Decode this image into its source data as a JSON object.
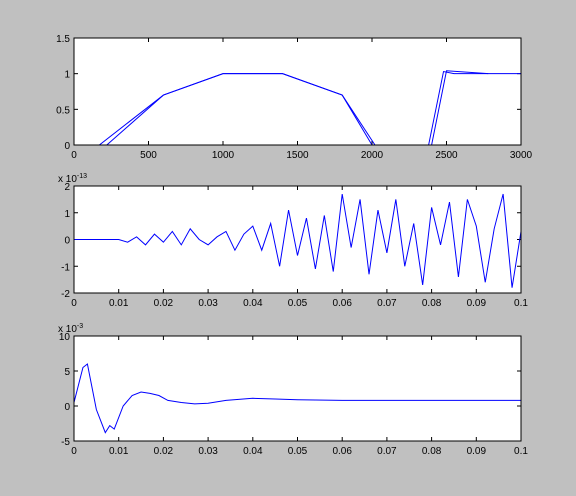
{
  "chart_data": [
    {
      "type": "line",
      "series": [
        {
          "color": "#0000ff",
          "x": [
            0,
            170,
            600,
            1000,
            1400,
            1800,
            2000,
            2380,
            2480,
            2550,
            3000
          ],
          "values": [
            0,
            0,
            0.7,
            1,
            1,
            0.7,
            0,
            0,
            1.03,
            1,
            1
          ]
        },
        {
          "color": "#0000ff",
          "x": [
            0,
            220,
            600,
            1000,
            1400,
            1800,
            2020,
            2400,
            2500,
            2780
          ],
          "values": [
            0,
            0,
            0.7,
            1,
            1,
            0.7,
            0,
            0,
            1.04,
            1
          ]
        }
      ],
      "xlim": [
        0,
        3000
      ],
      "xticks": [
        0,
        500,
        1000,
        1500,
        2000,
        2500,
        3000
      ],
      "ylim": [
        0,
        1.5
      ],
      "yticks": [
        0,
        0.5,
        1,
        1.5
      ]
    },
    {
      "type": "line",
      "y_exponent": {
        "base": "x 10",
        "power": "-13"
      },
      "x": [
        0,
        0.002,
        0.004,
        0.006,
        0.008,
        0.01,
        0.012,
        0.014,
        0.016,
        0.018,
        0.02,
        0.022,
        0.024,
        0.026,
        0.028,
        0.03,
        0.032,
        0.034,
        0.036,
        0.038,
        0.04,
        0.042,
        0.044,
        0.046,
        0.048,
        0.05,
        0.052,
        0.054,
        0.056,
        0.058,
        0.06,
        0.062,
        0.064,
        0.066,
        0.068,
        0.07,
        0.072,
        0.074,
        0.076,
        0.078,
        0.08,
        0.082,
        0.084,
        0.086,
        0.088,
        0.09,
        0.092,
        0.094,
        0.096,
        0.098,
        0.1
      ],
      "series": [
        {
          "color": "#0000ff",
          "values": [
            0,
            0,
            0,
            0,
            0,
            0,
            -0.1,
            0.1,
            -0.2,
            0.2,
            -0.1,
            0.3,
            -0.2,
            0.4,
            0,
            -0.2,
            0.1,
            0.3,
            -0.4,
            0.2,
            0.5,
            -0.4,
            0.6,
            -1,
            1.1,
            -0.6,
            0.8,
            -1.1,
            0.9,
            -1.2,
            1.7,
            -0.3,
            1.5,
            -1.3,
            1.1,
            -0.5,
            1.5,
            -1,
            0.6,
            -1.7,
            1.2,
            -0.2,
            1.4,
            -1.4,
            1.5,
            0.5,
            -1.6,
            0.4,
            1.7,
            -1.8,
            0.3
          ]
        }
      ],
      "xlim": [
        0,
        0.1
      ],
      "xticks": [
        0,
        0.01,
        0.02,
        0.03,
        0.04,
        0.05,
        0.06,
        0.07,
        0.08,
        0.09,
        0.1
      ],
      "ylim": [
        -2,
        2
      ],
      "yticks": [
        -2,
        -1,
        0,
        1,
        2
      ]
    },
    {
      "type": "line",
      "y_exponent": {
        "base": "x 10",
        "power": "-3"
      },
      "x": [
        0,
        0.002,
        0.003,
        0.005,
        0.007,
        0.008,
        0.009,
        0.011,
        0.013,
        0.015,
        0.017,
        0.019,
        0.021,
        0.024,
        0.027,
        0.03,
        0.034,
        0.04,
        0.045,
        0.05,
        0.06,
        0.07,
        0.08,
        0.09,
        0.1
      ],
      "series": [
        {
          "color": "#0000ff",
          "values": [
            0.5,
            5.5,
            6,
            -0.5,
            -3.8,
            -2.8,
            -3.3,
            0,
            1.5,
            2,
            1.8,
            1.5,
            0.8,
            0.5,
            0.3,
            0.4,
            0.8,
            1.1,
            1,
            0.9,
            0.8,
            0.8,
            0.8,
            0.8,
            0.8
          ]
        }
      ],
      "xlim": [
        0,
        0.1
      ],
      "xticks": [
        0,
        0.01,
        0.02,
        0.03,
        0.04,
        0.05,
        0.06,
        0.07,
        0.08,
        0.09,
        0.1
      ],
      "ylim": [
        -5,
        10
      ],
      "yticks": [
        -5,
        0,
        5,
        10
      ]
    }
  ]
}
